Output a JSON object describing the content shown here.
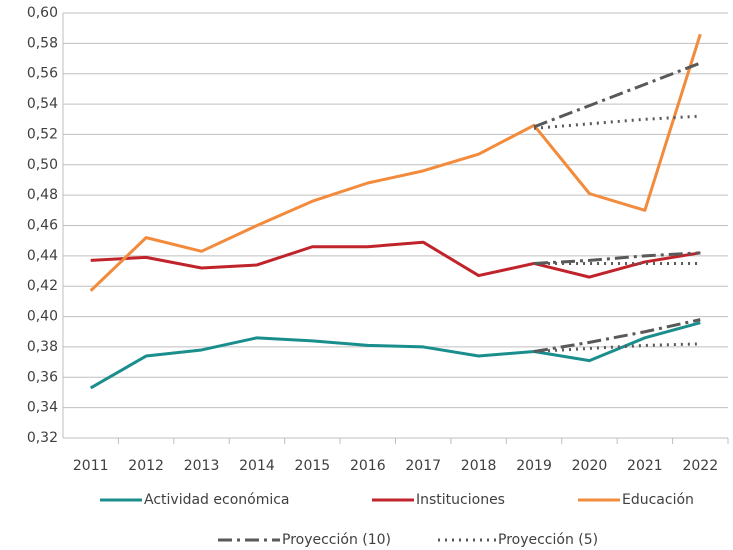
{
  "chart_data": {
    "type": "line",
    "categories": [
      "2011",
      "2012",
      "2013",
      "2014",
      "2015",
      "2016",
      "2017",
      "2018",
      "2019",
      "2020",
      "2021",
      "2022"
    ],
    "ylim": [
      0.32,
      0.6
    ],
    "yticks": [
      {
        "value": 0.32,
        "label": "0,32"
      },
      {
        "value": 0.34,
        "label": "0,34"
      },
      {
        "value": 0.36,
        "label": "0,36"
      },
      {
        "value": 0.38,
        "label": "0,38"
      },
      {
        "value": 0.4,
        "label": "0,40"
      },
      {
        "value": 0.42,
        "label": "0,42"
      },
      {
        "value": 0.44,
        "label": "0,44"
      },
      {
        "value": 0.46,
        "label": "0,46"
      },
      {
        "value": 0.48,
        "label": "0,48"
      },
      {
        "value": 0.5,
        "label": "0,50"
      },
      {
        "value": 0.52,
        "label": "0,52"
      },
      {
        "value": 0.54,
        "label": "0,54"
      },
      {
        "value": 0.56,
        "label": "0,56"
      },
      {
        "value": 0.58,
        "label": "0,58"
      },
      {
        "value": 0.6,
        "label": "0,60"
      }
    ],
    "grid": true,
    "legend": "bottom",
    "series": [
      {
        "name": "Actividad económica",
        "color": "#1a8e8c",
        "dash": "solid",
        "values": [
          0.353,
          0.374,
          0.378,
          0.386,
          0.384,
          0.381,
          0.38,
          0.374,
          0.377,
          0.371,
          0.386,
          0.396
        ]
      },
      {
        "name": "Instituciones",
        "color": "#c1232b",
        "dash": "solid",
        "values": [
          0.437,
          0.439,
          0.432,
          0.434,
          0.446,
          0.446,
          0.449,
          0.427,
          0.435,
          0.426,
          0.436,
          0.442
        ]
      },
      {
        "name": "Educación",
        "color": "#f28b3c",
        "dash": "solid",
        "values": [
          0.417,
          0.452,
          0.443,
          0.46,
          0.476,
          0.488,
          0.496,
          0.507,
          0.526,
          0.481,
          0.47,
          0.586
        ]
      },
      {
        "name": "Proyección (10)",
        "color": "#595959",
        "dash": "dashdot",
        "values": [
          null,
          null,
          null,
          null,
          null,
          null,
          null,
          null,
          0.525,
          0.539,
          0.553,
          0.567
        ]
      },
      {
        "name": "Proyección (5)",
        "color": "#595959",
        "dash": "dot",
        "values": [
          null,
          null,
          null,
          null,
          null,
          null,
          null,
          null,
          0.524,
          0.527,
          0.53,
          0.532
        ]
      },
      {
        "color": "#595959",
        "dash": "dashdot",
        "values": [
          null,
          null,
          null,
          null,
          null,
          null,
          null,
          null,
          0.435,
          0.437,
          0.44,
          0.442
        ]
      },
      {
        "color": "#595959",
        "dash": "dot",
        "values": [
          null,
          null,
          null,
          null,
          null,
          null,
          null,
          null,
          0.435,
          0.435,
          0.435,
          0.435
        ]
      },
      {
        "color": "#595959",
        "dash": "dashdot",
        "values": [
          null,
          null,
          null,
          null,
          null,
          null,
          null,
          null,
          0.377,
          0.383,
          0.39,
          0.398
        ]
      },
      {
        "color": "#595959",
        "dash": "dot",
        "values": [
          null,
          null,
          null,
          null,
          null,
          null,
          null,
          null,
          0.377,
          0.379,
          0.381,
          0.382
        ]
      }
    ]
  }
}
